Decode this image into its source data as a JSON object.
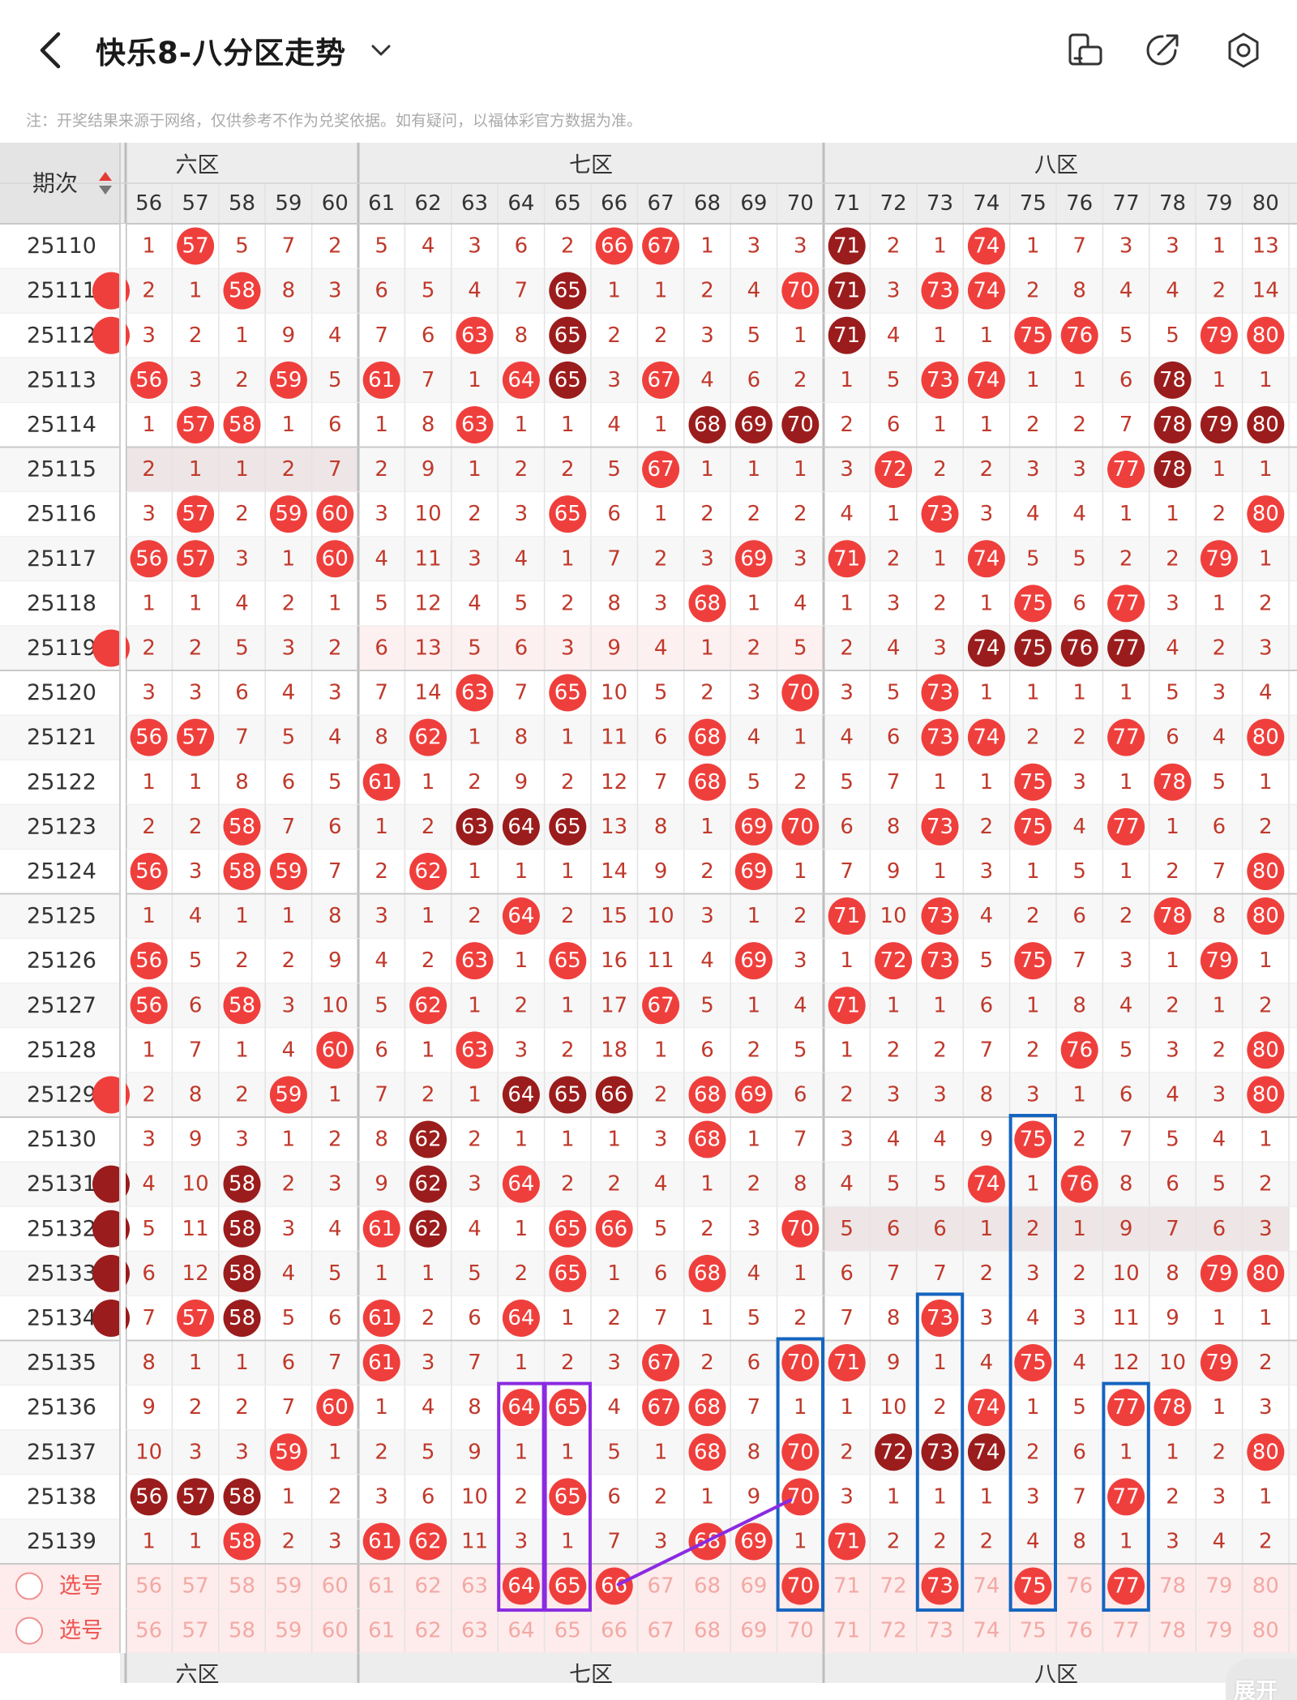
{
  "header": {
    "title": "快乐8-八分区走势",
    "back_icon": "back-chevron-icon",
    "dropdown_icon": "chevron-down-icon",
    "actions": [
      {
        "name": "device-mode-icon"
      },
      {
        "name": "share-icon"
      },
      {
        "name": "settings-icon"
      }
    ]
  },
  "notice": "注：开奖结果来源于网络，仅供参考不作为兑奖依据。如有疑问，以福体彩官方数据为准。",
  "table": {
    "period_header": "期次",
    "sort_icon": "sort-arrows-icon",
    "zones": [
      {
        "label": "六区",
        "visible_label": "六区",
        "start": 56,
        "end": 60
      },
      {
        "label": "七区",
        "start": 61,
        "end": 70
      },
      {
        "label": "八区",
        "start": 71,
        "end": 80
      }
    ],
    "bottom_zone_labels": [
      "六区",
      "七区",
      "八区"
    ],
    "columns": [
      56,
      57,
      58,
      59,
      60,
      61,
      62,
      63,
      64,
      65,
      66,
      67,
      68,
      69,
      70,
      71,
      72,
      73,
      74,
      75,
      76,
      77,
      78,
      79,
      80
    ],
    "rows": [
      {
        "period": "25110",
        "cells": [
          1,
          "57",
          5,
          7,
          2,
          5,
          4,
          3,
          6,
          2,
          "66",
          "67",
          1,
          3,
          3,
          "71d",
          2,
          1,
          "74",
          1,
          7,
          3,
          3,
          1,
          13
        ]
      },
      {
        "period": "25111",
        "cells": [
          2,
          1,
          "58",
          8,
          3,
          6,
          5,
          4,
          7,
          "65d",
          1,
          1,
          2,
          4,
          "70",
          "71d",
          3,
          "73",
          "74",
          2,
          8,
          4,
          4,
          2,
          14
        ]
      },
      {
        "period": "25112",
        "cells": [
          3,
          2,
          1,
          9,
          4,
          7,
          6,
          "63",
          8,
          "65d",
          2,
          2,
          3,
          5,
          1,
          "71d",
          4,
          1,
          1,
          "75",
          "76",
          5,
          5,
          "79",
          "80"
        ]
      },
      {
        "period": "25113",
        "cells": [
          "56",
          3,
          2,
          "59",
          5,
          "61",
          7,
          1,
          "64",
          "65d",
          3,
          "67",
          4,
          6,
          2,
          1,
          5,
          "73",
          "74",
          1,
          1,
          6,
          "78d",
          1,
          1
        ]
      },
      {
        "period": "25114",
        "cells": [
          1,
          "57",
          "58",
          1,
          6,
          1,
          8,
          "63",
          1,
          1,
          4,
          1,
          "68d",
          "69d",
          "70d",
          2,
          6,
          1,
          1,
          2,
          2,
          7,
          "78d",
          "79d",
          "80d"
        ]
      },
      {
        "period": "25115",
        "cells": [
          2,
          1,
          1,
          2,
          7,
          2,
          9,
          1,
          2,
          2,
          5,
          "67",
          1,
          1,
          1,
          3,
          "72",
          2,
          2,
          3,
          3,
          "77",
          "78d",
          1,
          1
        ]
      },
      {
        "period": "25116",
        "cells": [
          3,
          "57",
          2,
          "59",
          "60",
          3,
          10,
          2,
          3,
          "65",
          6,
          1,
          2,
          2,
          2,
          4,
          1,
          "73",
          3,
          4,
          4,
          1,
          1,
          2,
          "80"
        ]
      },
      {
        "period": "25117",
        "cells": [
          "56",
          "57",
          3,
          1,
          "60",
          4,
          11,
          3,
          4,
          1,
          7,
          2,
          3,
          "69",
          3,
          "71",
          2,
          1,
          "74",
          5,
          5,
          2,
          2,
          "79",
          1
        ]
      },
      {
        "period": "25118",
        "cells": [
          1,
          1,
          4,
          2,
          1,
          5,
          12,
          4,
          5,
          2,
          8,
          3,
          "68",
          1,
          4,
          1,
          3,
          2,
          1,
          "75",
          6,
          "77",
          3,
          1,
          2
        ]
      },
      {
        "period": "25119",
        "cells": [
          2,
          2,
          5,
          3,
          2,
          6,
          13,
          5,
          6,
          3,
          9,
          4,
          1,
          2,
          5,
          2,
          4,
          3,
          "74d",
          "75d",
          "76d",
          "77d",
          4,
          2,
          3
        ]
      },
      {
        "period": "25120",
        "cells": [
          3,
          3,
          6,
          4,
          3,
          7,
          14,
          "63",
          7,
          "65",
          10,
          5,
          2,
          3,
          "70",
          3,
          5,
          "73",
          1,
          1,
          1,
          1,
          5,
          3,
          4
        ]
      },
      {
        "period": "25121",
        "cells": [
          "56",
          "57",
          7,
          5,
          4,
          8,
          "62",
          1,
          8,
          1,
          11,
          6,
          "68",
          4,
          1,
          4,
          6,
          "73",
          "74",
          2,
          2,
          "77",
          6,
          4,
          "80"
        ]
      },
      {
        "period": "25122",
        "cells": [
          1,
          1,
          8,
          6,
          5,
          "61",
          1,
          2,
          9,
          2,
          12,
          7,
          "68",
          5,
          2,
          5,
          7,
          1,
          1,
          "75",
          3,
          1,
          "78",
          5,
          1
        ]
      },
      {
        "period": "25123",
        "cells": [
          2,
          2,
          "58",
          7,
          6,
          1,
          2,
          "63d",
          "64d",
          "65d",
          13,
          8,
          1,
          "69",
          "70",
          6,
          8,
          "73",
          2,
          "75",
          4,
          "77",
          1,
          6,
          2
        ]
      },
      {
        "period": "25124",
        "cells": [
          "56",
          3,
          "58",
          "59",
          7,
          2,
          "62",
          1,
          1,
          1,
          14,
          9,
          2,
          "69",
          1,
          7,
          9,
          1,
          3,
          1,
          5,
          1,
          2,
          7,
          "80"
        ]
      },
      {
        "period": "25125",
        "cells": [
          1,
          4,
          1,
          1,
          8,
          3,
          1,
          2,
          "64",
          2,
          15,
          10,
          3,
          1,
          2,
          "71",
          10,
          "73",
          4,
          2,
          6,
          2,
          "78",
          8,
          "80"
        ]
      },
      {
        "period": "25126",
        "cells": [
          "56",
          5,
          2,
          2,
          9,
          4,
          2,
          "63",
          1,
          "65",
          16,
          11,
          4,
          "69",
          3,
          1,
          "72",
          "73",
          5,
          "75",
          7,
          3,
          1,
          "79",
          1
        ]
      },
      {
        "period": "25127",
        "cells": [
          "56",
          6,
          "58",
          3,
          10,
          5,
          "62",
          1,
          2,
          1,
          17,
          "67",
          5,
          1,
          4,
          "71",
          1,
          1,
          6,
          1,
          8,
          4,
          2,
          1,
          2
        ]
      },
      {
        "period": "25128",
        "cells": [
          1,
          7,
          1,
          4,
          "60",
          6,
          1,
          "63",
          3,
          2,
          18,
          1,
          6,
          2,
          5,
          1,
          2,
          2,
          7,
          2,
          "76",
          5,
          3,
          2,
          "80"
        ]
      },
      {
        "period": "25129",
        "cells": [
          2,
          8,
          2,
          "59",
          1,
          7,
          2,
          1,
          "64d",
          "65d",
          "66d",
          2,
          "68",
          "69",
          6,
          2,
          3,
          3,
          8,
          3,
          1,
          6,
          4,
          3,
          "80"
        ]
      },
      {
        "period": "25130",
        "cells": [
          3,
          9,
          3,
          1,
          2,
          8,
          "62d",
          2,
          1,
          1,
          1,
          3,
          "68",
          1,
          7,
          3,
          4,
          4,
          9,
          "75",
          2,
          7,
          5,
          4,
          1
        ]
      },
      {
        "period": "25131",
        "cells": [
          4,
          10,
          "58d",
          2,
          3,
          9,
          "62d",
          3,
          "64",
          2,
          2,
          4,
          1,
          2,
          8,
          4,
          5,
          5,
          "74",
          1,
          "76",
          8,
          6,
          5,
          2
        ]
      },
      {
        "period": "25132",
        "cells": [
          5,
          11,
          "58d",
          3,
          4,
          "61",
          "62d",
          4,
          1,
          "65",
          "66",
          5,
          2,
          3,
          "70",
          5,
          6,
          6,
          1,
          2,
          1,
          9,
          7,
          6,
          3
        ]
      },
      {
        "period": "25133",
        "cells": [
          6,
          12,
          "58d",
          4,
          5,
          1,
          1,
          5,
          2,
          "65",
          1,
          6,
          "68",
          4,
          1,
          6,
          7,
          7,
          2,
          3,
          2,
          10,
          8,
          "79",
          "80"
        ]
      },
      {
        "period": "25134",
        "cells": [
          7,
          "57",
          "58d",
          5,
          6,
          "61",
          2,
          6,
          "64",
          1,
          2,
          7,
          1,
          5,
          2,
          7,
          8,
          "73",
          3,
          4,
          3,
          11,
          9,
          1,
          1
        ]
      },
      {
        "period": "25135",
        "cells": [
          8,
          1,
          1,
          6,
          7,
          "61",
          3,
          7,
          1,
          2,
          3,
          "67",
          2,
          6,
          "70",
          "71",
          9,
          1,
          4,
          "75",
          4,
          12,
          10,
          "79",
          2
        ]
      },
      {
        "period": "25136",
        "cells": [
          9,
          2,
          2,
          7,
          "60",
          1,
          4,
          8,
          "64",
          "65",
          4,
          "67",
          "68",
          7,
          1,
          1,
          10,
          2,
          "74",
          1,
          5,
          "77",
          "78",
          1,
          3
        ]
      },
      {
        "period": "25137",
        "cells": [
          10,
          3,
          3,
          "59",
          1,
          2,
          5,
          9,
          1,
          1,
          5,
          1,
          "68",
          8,
          "70",
          2,
          "72d",
          "73d",
          "74d",
          2,
          6,
          1,
          1,
          2,
          "80"
        ]
      },
      {
        "period": "25138",
        "cells": [
          "56d",
          "57d",
          "58d",
          1,
          2,
          3,
          6,
          10,
          2,
          "65",
          6,
          2,
          1,
          9,
          "70",
          3,
          1,
          1,
          1,
          3,
          7,
          "77",
          2,
          3,
          1
        ]
      },
      {
        "period": "25139",
        "cells": [
          1,
          1,
          "58",
          2,
          3,
          "61",
          "62",
          11,
          3,
          1,
          7,
          3,
          "68",
          "69",
          1,
          "71",
          2,
          2,
          2,
          4,
          8,
          1,
          3,
          4,
          2
        ]
      }
    ],
    "select_rows": [
      {
        "label": "选号",
        "selected": [
          64,
          65,
          66,
          70,
          73,
          75,
          77
        ]
      },
      {
        "label": "选号",
        "selected": []
      }
    ],
    "expand_label": "展开"
  },
  "colors": {
    "hit_red": "#ef3f3c",
    "hit_dark": "#9b1c1c",
    "miss_text": "#c0392b",
    "header_bg": "#ededed",
    "select_bg": "#fdeceb",
    "annotation_blue": "#1565c0",
    "annotation_purple": "#8a2be2"
  }
}
